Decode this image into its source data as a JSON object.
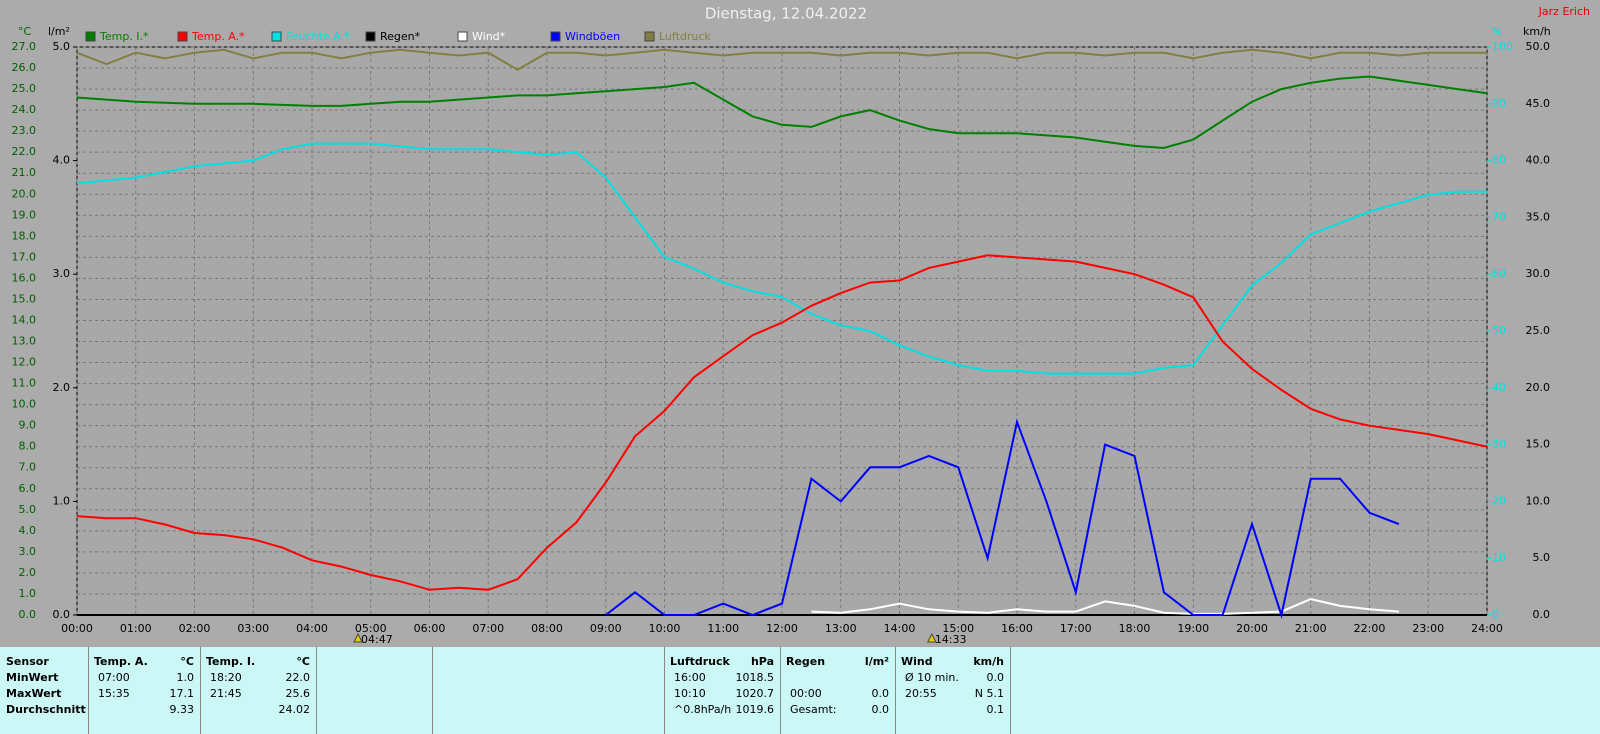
{
  "chart_data": {
    "type": "line",
    "title": "Dienstag, 12.04.2022",
    "author": "Jarz Erich",
    "y_label": "°C",
    "y2_label": "%",
    "y3_label": "l/m²",
    "y4_label": "km/h",
    "x": [
      0,
      0.5,
      1,
      1.5,
      2,
      2.5,
      3,
      3.5,
      4,
      4.5,
      5,
      5.5,
      6,
      6.5,
      7,
      7.5,
      8,
      8.5,
      9,
      9.5,
      10,
      10.5,
      11,
      11.5,
      12,
      12.5,
      13,
      13.5,
      14,
      14.5,
      15,
      15.5,
      16,
      16.5,
      17,
      17.5,
      18,
      18.5,
      19,
      19.5,
      20,
      20.5,
      21,
      21.5,
      22,
      22.5,
      23,
      23.5,
      24
    ],
    "xlim": [
      0,
      24
    ],
    "xticks": [
      {
        "value": 0,
        "label": "00:00"
      },
      {
        "value": 1,
        "label": "01:00"
      },
      {
        "value": 2,
        "label": "02:00"
      },
      {
        "value": 3,
        "label": "03:00"
      },
      {
        "value": 4,
        "label": "04:00"
      },
      {
        "value": 5,
        "label": "05:00"
      },
      {
        "value": 6,
        "label": "06:00"
      },
      {
        "value": 7,
        "label": "07:00"
      },
      {
        "value": 8,
        "label": "08:00"
      },
      {
        "value": 9,
        "label": "09:00"
      },
      {
        "value": 10,
        "label": "10:00"
      },
      {
        "value": 11,
        "label": "11:00"
      },
      {
        "value": 12,
        "label": "12:00"
      },
      {
        "value": 13,
        "label": "13:00"
      },
      {
        "value": 14,
        "label": "14:00"
      },
      {
        "value": 15,
        "label": "15:00"
      },
      {
        "value": 16,
        "label": "16:00"
      },
      {
        "value": 17,
        "label": "17:00"
      },
      {
        "value": 18,
        "label": "18:00"
      },
      {
        "value": 19,
        "label": "19:00"
      },
      {
        "value": 20,
        "label": "20:00"
      },
      {
        "value": 21,
        "label": "21:00"
      },
      {
        "value": 22,
        "label": "22:00"
      },
      {
        "value": 23,
        "label": "23:00"
      },
      {
        "value": 24,
        "label": "24:00"
      }
    ],
    "ylim": [
      0,
      27
    ],
    "yticks": [
      {
        "value": 0,
        "label": "0.0"
      },
      {
        "value": 1,
        "label": "1.0"
      },
      {
        "value": 2,
        "label": "2.0"
      },
      {
        "value": 3,
        "label": "3.0"
      },
      {
        "value": 4,
        "label": "4.0"
      },
      {
        "value": 5,
        "label": "5.0"
      },
      {
        "value": 6,
        "label": "6.0"
      },
      {
        "value": 7,
        "label": "7.0"
      },
      {
        "value": 8,
        "label": "8.0"
      },
      {
        "value": 9,
        "label": "9.0"
      },
      {
        "value": 10,
        "label": "10.0"
      },
      {
        "value": 11,
        "label": "11.0"
      },
      {
        "value": 12,
        "label": "12.0"
      },
      {
        "value": 13,
        "label": "13.0"
      },
      {
        "value": 14,
        "label": "14.0"
      },
      {
        "value": 15,
        "label": "15.0"
      },
      {
        "value": 16,
        "label": "16.0"
      },
      {
        "value": 17,
        "label": "17.0"
      },
      {
        "value": 18,
        "label": "18.0"
      },
      {
        "value": 19,
        "label": "19.0"
      },
      {
        "value": 20,
        "label": "20.0"
      },
      {
        "value": 21,
        "label": "21.0"
      },
      {
        "value": 22,
        "label": "22.0"
      },
      {
        "value": 23,
        "label": "23.0"
      },
      {
        "value": 24,
        "label": "24.0"
      },
      {
        "value": 25,
        "label": "25.0"
      },
      {
        "value": 26,
        "label": "26.0"
      },
      {
        "value": 27,
        "label": "27.0"
      }
    ],
    "y2lim": [
      0,
      100
    ],
    "y2ticks": [
      0,
      10,
      20,
      30,
      40,
      50,
      60,
      70,
      80,
      90,
      100
    ],
    "y3lim": [
      0,
      5
    ],
    "y3ticks": [
      {
        "value": 0,
        "label": "0.0"
      },
      {
        "value": 1,
        "label": "1.0"
      },
      {
        "value": 2,
        "label": "2.0"
      },
      {
        "value": 3,
        "label": "3.0"
      },
      {
        "value": 4,
        "label": "4.0"
      },
      {
        "value": 5,
        "label": "5.0"
      }
    ],
    "y4lim": [
      0,
      50
    ],
    "y4ticks": [
      {
        "value": 0,
        "label": "0.0"
      },
      {
        "value": 5,
        "label": "5.0"
      },
      {
        "value": 10,
        "label": "10.0"
      },
      {
        "value": 15,
        "label": "15.0"
      },
      {
        "value": 20,
        "label": "20.0"
      },
      {
        "value": 25,
        "label": "25.0"
      },
      {
        "value": 30,
        "label": "30.0"
      },
      {
        "value": 35,
        "label": "35.0"
      },
      {
        "value": 40,
        "label": "40.0"
      },
      {
        "value": 45,
        "label": "45.0"
      },
      {
        "value": 50,
        "label": "50.0"
      }
    ],
    "grid": true,
    "series": [
      {
        "name": "Temp. I.*",
        "color": "#008000",
        "axis": "y",
        "values": [
          24.6,
          24.5,
          24.4,
          24.35,
          24.3,
          24.3,
          24.3,
          24.25,
          24.2,
          24.2,
          24.3,
          24.4,
          24.4,
          24.5,
          24.6,
          24.7,
          24.7,
          24.8,
          24.9,
          25.0,
          25.1,
          25.3,
          24.5,
          23.7,
          23.3,
          23.2,
          23.7,
          24.0,
          23.5,
          23.1,
          22.9,
          22.9,
          22.9,
          22.8,
          22.7,
          22.5,
          22.3,
          22.2,
          22.6,
          23.5,
          24.4,
          25.0,
          25.3,
          25.5,
          25.6,
          25.4,
          25.2,
          25.0,
          24.8
        ]
      },
      {
        "name": "Temp. A.*",
        "color": "#ff0000",
        "axis": "y",
        "values": [
          4.7,
          4.6,
          4.6,
          4.3,
          3.9,
          3.8,
          3.6,
          3.2,
          2.6,
          2.3,
          1.9,
          1.6,
          1.2,
          1.3,
          1.2,
          1.7,
          3.2,
          4.4,
          6.3,
          8.5,
          9.7,
          11.3,
          12.3,
          13.3,
          13.9,
          14.7,
          15.3,
          15.8,
          15.9,
          16.5,
          16.8,
          17.1,
          17.0,
          16.9,
          16.8,
          16.5,
          16.2,
          15.7,
          15.1,
          13.0,
          11.7,
          10.7,
          9.8,
          9.3,
          9.0,
          8.8,
          8.6,
          8.3,
          8.0
        ]
      },
      {
        "name": "Feuchte A.*",
        "color": "#00e0e0",
        "axis": "y2",
        "values": [
          76,
          76.5,
          77,
          78,
          79,
          79.5,
          80,
          82,
          83,
          83,
          83,
          82.5,
          82,
          82,
          82,
          81.5,
          81,
          81.5,
          77,
          70,
          63,
          61,
          58.5,
          57,
          56,
          53,
          51,
          50,
          47.5,
          45.5,
          44,
          43,
          43,
          42.5,
          42.5,
          42.5,
          42.5,
          43.5,
          44,
          51,
          58,
          62,
          67,
          69,
          71,
          72.5,
          74,
          74.5,
          74.5
        ]
      },
      {
        "name": "Regen*",
        "color": "#000000",
        "axis": "y3",
        "values": [
          0,
          0,
          0,
          0,
          0,
          0,
          0,
          0,
          0,
          0,
          0,
          0,
          0,
          0,
          0,
          0,
          0,
          0,
          0,
          0,
          0,
          0,
          0,
          0,
          0,
          0,
          0,
          0,
          0,
          0,
          0,
          0,
          0,
          0,
          0,
          0,
          0,
          0,
          0,
          0,
          0,
          0,
          0,
          0,
          0,
          0,
          0,
          0,
          0
        ]
      },
      {
        "name": "Wind*",
        "color": "#ffffff",
        "axis": "y4",
        "values": [
          null,
          null,
          null,
          null,
          null,
          null,
          null,
          null,
          null,
          null,
          null,
          null,
          null,
          null,
          null,
          null,
          null,
          null,
          null,
          null,
          null,
          null,
          null,
          null,
          null,
          0.3,
          0.2,
          0.5,
          1.0,
          0.5,
          0.3,
          0.2,
          0.5,
          0.3,
          0.3,
          1.2,
          0.8,
          0.2,
          0.1,
          0.1,
          0.2,
          0.3,
          1.4,
          0.8,
          0.5,
          0.3,
          null,
          null,
          null
        ]
      },
      {
        "name": "Windböen",
        "color": "#0000ff",
        "axis": "y4",
        "values": [
          null,
          null,
          null,
          null,
          null,
          null,
          null,
          null,
          null,
          null,
          null,
          null,
          null,
          null,
          null,
          null,
          null,
          null,
          0,
          2,
          0,
          0,
          1,
          0,
          1,
          12,
          10,
          13,
          13,
          14,
          13,
          5,
          17,
          10,
          2,
          15,
          14,
          2,
          0,
          0,
          8,
          0,
          12,
          12,
          9,
          8,
          null,
          null,
          null
        ]
      },
      {
        "name": "Luftdruck",
        "color": "#808040",
        "axis": "y2",
        "values": [
          99,
          97,
          99,
          98,
          99,
          99.5,
          98,
          99,
          99,
          98,
          99,
          99.5,
          99,
          98.5,
          99,
          96,
          99,
          99,
          98.5,
          99,
          99.5,
          99,
          98.5,
          99,
          99,
          99,
          98.5,
          99,
          99,
          98.5,
          99,
          99,
          98,
          99,
          99,
          98.5,
          99,
          99,
          98,
          99,
          99.5,
          99,
          98,
          99,
          99,
          98.5,
          99,
          99,
          99
        ]
      }
    ],
    "annotations": [
      {
        "x": 4.783,
        "label": "04:47"
      },
      {
        "x": 14.55,
        "label": "14:33"
      }
    ]
  },
  "stats": {
    "columns": [
      {
        "header": "Sensor",
        "unit": null,
        "rows": [
          [
            "MinWert",
            null
          ],
          [
            "MaxWert",
            null
          ],
          [
            "Durchschnitt",
            null
          ]
        ]
      },
      {
        "header": "Temp. A.",
        "unit": "°C",
        "rows": [
          [
            "07:00",
            "1.0"
          ],
          [
            "15:35",
            "17.1"
          ],
          [
            null,
            "9.33"
          ]
        ]
      },
      {
        "header": "Temp. I.",
        "unit": "°C",
        "rows": [
          [
            "18:20",
            "22.0"
          ],
          [
            "21:45",
            "25.6"
          ],
          [
            null,
            "24.02"
          ]
        ]
      },
      {
        "header": "Luftdruck",
        "unit": "hPa",
        "rows": [
          [
            "16:00",
            "1018.5"
          ],
          [
            "10:10",
            "1020.7"
          ],
          [
            "^0.8hPa/h",
            "1019.6"
          ]
        ]
      },
      {
        "header": "Regen",
        "unit": "l/m²",
        "rows": [
          [
            null,
            null
          ],
          [
            "00:00",
            "0.0"
          ],
          [
            "Gesamt:",
            "0.0"
          ]
        ]
      },
      {
        "header": "Wind",
        "unit": "km/h",
        "rows": [
          [
            "Ø 10 min.",
            "0.0"
          ],
          [
            "20:55",
            "N 5.1"
          ],
          [
            null,
            "0.1"
          ]
        ]
      }
    ]
  }
}
